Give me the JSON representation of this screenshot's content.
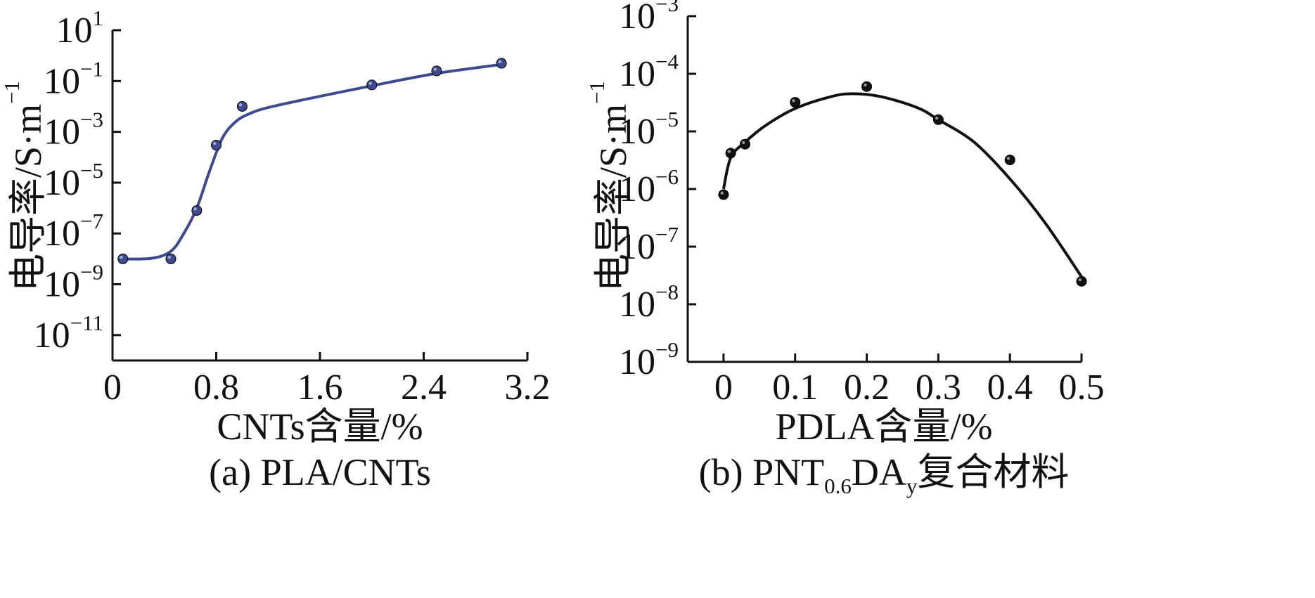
{
  "chart_data": [
    {
      "type": "line",
      "panel": "a",
      "caption": "(a) PLA/CNTs",
      "xlabel": "CNTs含量/%",
      "ylabel": "电导率/S·m",
      "ylabel_sup": "−1",
      "x_scale": "linear",
      "y_scale": "log",
      "xlim": [
        0,
        3.2
      ],
      "ylim": [
        1e-12,
        10
      ],
      "xticks": [
        0,
        0.8,
        1.6,
        2.4,
        3.2
      ],
      "xtick_labels": [
        "0",
        "0.8",
        "1.6",
        "2.4",
        "3.2"
      ],
      "yticks": [
        1e-11,
        1e-09,
        1e-07,
        1e-05,
        0.001,
        0.1,
        10
      ],
      "ytick_labels": [
        {
          "base": "10",
          "exp": "−11"
        },
        {
          "base": "10",
          "exp": "−9"
        },
        {
          "base": "10",
          "exp": "−7"
        },
        {
          "base": "10",
          "exp": "−5"
        },
        {
          "base": "10",
          "exp": "−3"
        },
        {
          "base": "10",
          "exp": "−1"
        },
        {
          "base": "10",
          "exp": "1"
        }
      ],
      "color": "#3d4a8f",
      "points": [
        {
          "x": 0.08,
          "y": 1e-08
        },
        {
          "x": 0.45,
          "y": 1e-08
        },
        {
          "x": 0.65,
          "y": 8e-07
        },
        {
          "x": 0.8,
          "y": 0.0003
        },
        {
          "x": 1.0,
          "y": 0.01
        },
        {
          "x": 2.0,
          "y": 0.07
        },
        {
          "x": 2.5,
          "y": 0.25
        },
        {
          "x": 3.0,
          "y": 0.5
        }
      ],
      "fit_curve": [
        {
          "x": 0.06,
          "y": 1e-08
        },
        {
          "x": 0.3,
          "y": 1.05e-08
        },
        {
          "x": 0.45,
          "y": 2e-08
        },
        {
          "x": 0.55,
          "y": 1e-07
        },
        {
          "x": 0.65,
          "y": 1e-06
        },
        {
          "x": 0.75,
          "y": 3e-05
        },
        {
          "x": 0.85,
          "y": 0.0006
        },
        {
          "x": 0.95,
          "y": 0.0025
        },
        {
          "x": 1.05,
          "y": 0.005
        },
        {
          "x": 1.2,
          "y": 0.009
        },
        {
          "x": 1.6,
          "y": 0.025
        },
        {
          "x": 2.0,
          "y": 0.065
        },
        {
          "x": 2.5,
          "y": 0.2
        },
        {
          "x": 3.0,
          "y": 0.45
        }
      ]
    },
    {
      "type": "line",
      "panel": "b",
      "caption_prefix": "(b) PNT",
      "caption_sub1": "0.6",
      "caption_mid": "DA",
      "caption_sub2": "y",
      "caption_suffix": "复合材料",
      "xlabel": "PDLA含量/%",
      "ylabel": "电导率/S·m",
      "ylabel_sup": "−1",
      "x_scale": "linear",
      "y_scale": "log",
      "xlim": [
        -0.05,
        0.5
      ],
      "ylim": [
        1e-09,
        0.001
      ],
      "xticks": [
        0,
        0.1,
        0.2,
        0.3,
        0.4,
        0.5
      ],
      "xtick_labels": [
        "0",
        "0.1",
        "0.2",
        "0.3",
        "0.4",
        "0.5"
      ],
      "yticks": [
        1e-09,
        1e-08,
        1e-07,
        1e-06,
        1e-05,
        0.0001,
        0.001
      ],
      "ytick_labels": [
        {
          "base": "10",
          "exp": "−9"
        },
        {
          "base": "10",
          "exp": "−8"
        },
        {
          "base": "10",
          "exp": "−7"
        },
        {
          "base": "10",
          "exp": "−6"
        },
        {
          "base": "10",
          "exp": "−5"
        },
        {
          "base": "10",
          "exp": "−4"
        },
        {
          "base": "10",
          "exp": "−3"
        }
      ],
      "color": "#111111",
      "points": [
        {
          "x": 0.0,
          "y": 8e-07
        },
        {
          "x": 0.01,
          "y": 4.2e-06
        },
        {
          "x": 0.03,
          "y": 6e-06
        },
        {
          "x": 0.1,
          "y": 3.2e-05
        },
        {
          "x": 0.2,
          "y": 6e-05
        },
        {
          "x": 0.3,
          "y": 1.6e-05
        },
        {
          "x": 0.4,
          "y": 3.2e-06
        },
        {
          "x": 0.5,
          "y": 2.5e-08
        }
      ],
      "fit_curve": [
        {
          "x": 0.0,
          "y": 1e-06
        },
        {
          "x": 0.01,
          "y": 3.5e-06
        },
        {
          "x": 0.03,
          "y": 6.5e-06
        },
        {
          "x": 0.06,
          "y": 1.3e-05
        },
        {
          "x": 0.1,
          "y": 2.5e-05
        },
        {
          "x": 0.15,
          "y": 4e-05
        },
        {
          "x": 0.18,
          "y": 4.5e-05
        },
        {
          "x": 0.22,
          "y": 4e-05
        },
        {
          "x": 0.27,
          "y": 2.6e-05
        },
        {
          "x": 0.3,
          "y": 1.6e-05
        },
        {
          "x": 0.35,
          "y": 6.5e-06
        },
        {
          "x": 0.4,
          "y": 1.5e-06
        },
        {
          "x": 0.45,
          "y": 2.5e-07
        },
        {
          "x": 0.5,
          "y": 3e-08
        }
      ]
    }
  ]
}
